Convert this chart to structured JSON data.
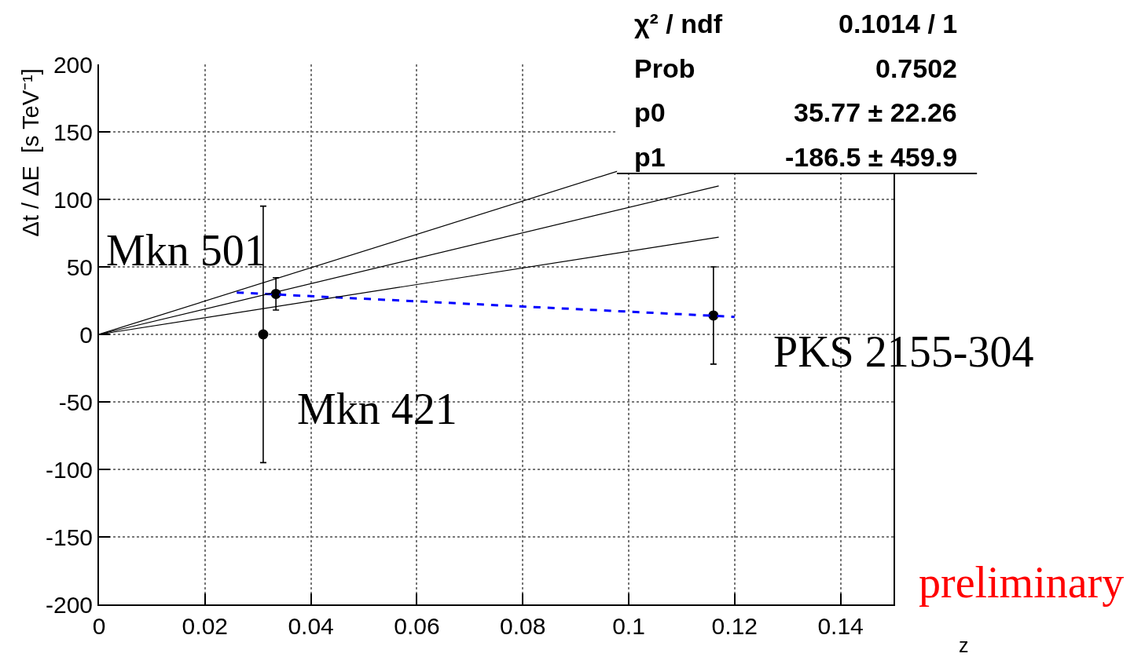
{
  "chart_data": {
    "type": "scatter",
    "xlabel": "z",
    "ylabel": "Δt / ΔE  [s TeV⁻¹]",
    "xlim": [
      0,
      0.15
    ],
    "xticks": [
      0,
      0.02,
      0.04,
      0.06,
      0.08,
      0.1,
      0.12,
      0.14
    ],
    "ylim": [
      -200,
      200
    ],
    "yticks": [
      -200,
      -150,
      -100,
      -50,
      0,
      50,
      100,
      150,
      200
    ],
    "grid": true,
    "series": [
      {
        "color": "#000000",
        "marker": "circle",
        "x": [
          0.031,
          0.0334,
          0.116
        ],
        "values": [
          0,
          30,
          14
        ],
        "errors": [
          95,
          12,
          36
        ]
      },
      {
        "type": "line",
        "color": "#0000ff",
        "line_style": "dashed",
        "x": [
          0.026,
          0.12
        ],
        "values": [
          31,
          13
        ]
      },
      {
        "type": "line",
        "color": "#000000",
        "x": [
          0,
          0.098
        ],
        "values": [
          0,
          121
        ]
      },
      {
        "type": "line",
        "color": "#000000",
        "x": [
          0,
          0.117
        ],
        "values": [
          0,
          110
        ]
      },
      {
        "type": "line",
        "color": "#000000",
        "x": [
          0,
          0.117
        ],
        "values": [
          0,
          72
        ]
      }
    ],
    "annotations": [
      "χ² / ndf",
      "0.1014 / 1",
      "Prob",
      "0.7502",
      "p0",
      "35.77 ± 22.26",
      "p1",
      "-186.5 ± 459.9",
      "preliminary",
      {
        "text": "Mkn 501",
        "x": 0.0334,
        "y": 30
      },
      {
        "text": "Mkn 421",
        "x": 0.031,
        "y": 0
      },
      {
        "text": "PKS 2155-304",
        "x": 0.116,
        "y": 14
      }
    ]
  }
}
